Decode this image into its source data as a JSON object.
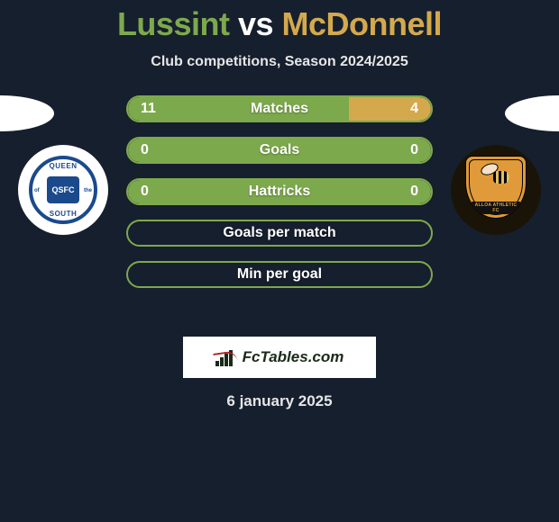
{
  "title": {
    "p1": "Lussint",
    "vs": "vs",
    "p2": "McDonnell"
  },
  "subtitle": "Club competitions, Season 2024/2025",
  "clubs": {
    "left": {
      "name": "Queen of the South",
      "top": "QUEEN",
      "left": "of",
      "right": "the",
      "center": "QSFC",
      "bottom": "SOUTH"
    },
    "right": {
      "name": "Alloa Athletic",
      "banner": "ALLOA ATHLETIC FC"
    }
  },
  "colors": {
    "p1": "#7da94d",
    "p2": "#d4a94d",
    "bg": "#161f2d",
    "text": "#ffffff"
  },
  "bars": [
    {
      "label": "Matches",
      "left_val": "11",
      "right_val": "4",
      "left_pct": 73,
      "right_pct": 27
    },
    {
      "label": "Goals",
      "left_val": "0",
      "right_val": "0",
      "left_pct": 100,
      "right_pct": 0
    },
    {
      "label": "Hattricks",
      "left_val": "0",
      "right_val": "0",
      "left_pct": 100,
      "right_pct": 0
    },
    {
      "label": "Goals per match",
      "left_val": "",
      "right_val": "",
      "left_pct": 0,
      "right_pct": 0
    },
    {
      "label": "Min per goal",
      "left_val": "",
      "right_val": "",
      "left_pct": 0,
      "right_pct": 0
    }
  ],
  "logo": "FcTables.com",
  "date": "6 january 2025"
}
